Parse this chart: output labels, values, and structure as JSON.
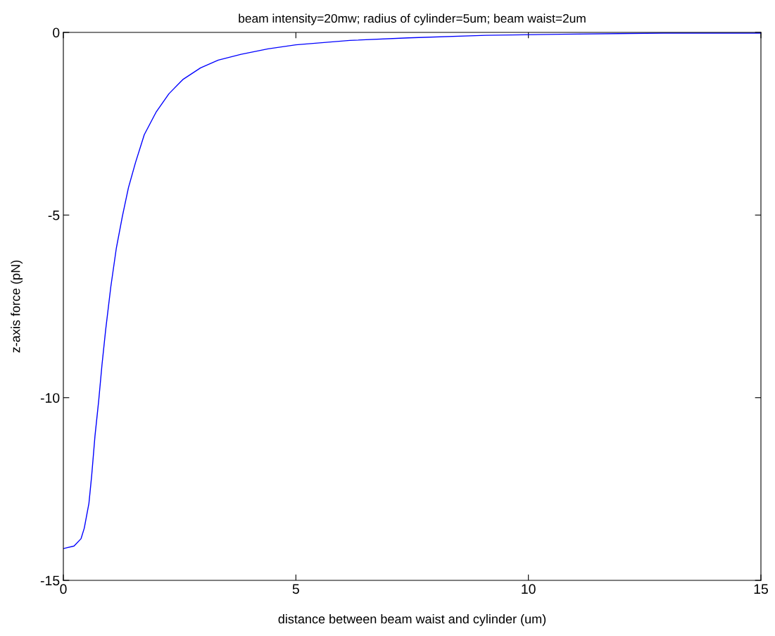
{
  "chart_data": {
    "type": "line",
    "title": "beam intensity=20mw; radius of cylinder=5um; beam waist=2um",
    "xlabel": "distance between beam waist and cylinder (um)",
    "ylabel": "z-axis force (pN)",
    "series": [
      {
        "color": "#0000ff",
        "x": [
          0,
          0.23,
          0.38,
          0.45,
          0.55,
          0.61,
          0.68,
          0.76,
          0.83,
          0.91,
          1.02,
          1.14,
          1.27,
          1.4,
          1.55,
          1.74,
          2.0,
          2.27,
          2.57,
          2.95,
          3.33,
          3.82,
          4.4,
          5.0,
          6.16,
          7.42,
          9.09,
          10.7,
          12.9,
          15
        ],
        "values": [
          -14.13,
          -14.06,
          -13.86,
          -13.57,
          -12.89,
          -12.12,
          -11.05,
          -10.08,
          -9.11,
          -8.14,
          -6.97,
          -5.9,
          -5.03,
          -4.25,
          -3.57,
          -2.8,
          -2.17,
          -1.68,
          -1.29,
          -0.97,
          -0.76,
          -0.6,
          -0.45,
          -0.34,
          -0.22,
          -0.15,
          -0.08,
          -0.05,
          -0.02,
          -0.02
        ]
      }
    ],
    "xlim": [
      0,
      15
    ],
    "ylim": [
      -15,
      0
    ],
    "xticks": [
      0,
      5,
      10,
      15
    ],
    "yticks": [
      -15,
      -10,
      -5,
      0
    ],
    "grid": false,
    "legend": false,
    "marker": "none",
    "line_style": "solid"
  }
}
